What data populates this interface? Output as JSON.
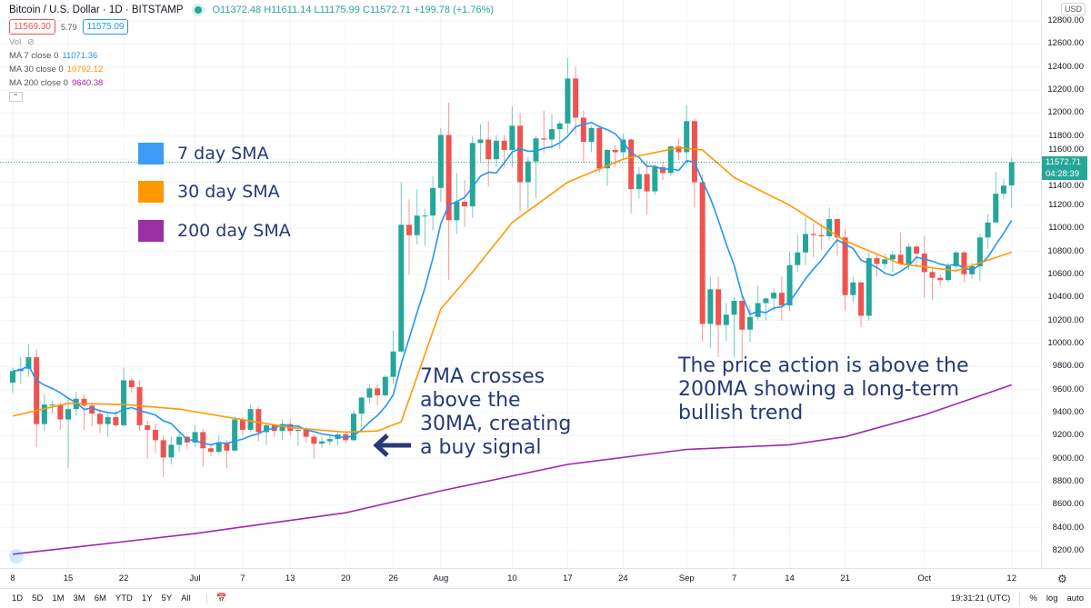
{
  "header": {
    "title": "Bitcoin / U.S. Dollar · 1D · BITSTAMP",
    "open": "O11372.48",
    "high": "H11611.14",
    "low": "L11175.99",
    "close": "C11572.71",
    "change": "+199.78 (+1.76%)",
    "bid": "11569.30",
    "spread": "5.79",
    "ask": "11575.09",
    "vol_label": "Vol"
  },
  "indicators": [
    {
      "label": "MA 7 close 0",
      "value": "11071.36",
      "color": "#2196f3"
    },
    {
      "label": "MA 30 close 0",
      "value": "10792.12",
      "color": "#ff9800"
    },
    {
      "label": "MA 200 close 0",
      "value": "9640.38",
      "color": "#9c27b0"
    }
  ],
  "legend": [
    {
      "label": "7 day SMA",
      "color": "#3d9cf5"
    },
    {
      "label": "30 day SMA",
      "color": "#ff9800"
    },
    {
      "label": "200 day SMA",
      "color": "#9b2fa4"
    }
  ],
  "annotations": {
    "crossover": [
      "7MA crosses",
      "above the",
      "30MA, creating",
      "a buy signal"
    ],
    "trend": [
      "The price action is above the",
      "200MA showing a long-term",
      "bullish trend"
    ]
  },
  "price_axis": {
    "currency": "USD",
    "ticks": [
      12800,
      12600,
      12400,
      12200,
      12000,
      11800,
      11600,
      11400,
      11200,
      11000,
      10800,
      10600,
      10400,
      10200,
      10000,
      9800,
      9600,
      9400,
      9200,
      9000,
      8800,
      8600,
      8400,
      8200
    ],
    "last_price": "11572.71",
    "countdown": "04:28:39"
  },
  "time_axis": {
    "ticks": [
      {
        "label": "8",
        "date": "Jun 8"
      },
      {
        "label": "15",
        "date": "Jun 15"
      },
      {
        "label": "22",
        "date": "Jun 22"
      },
      {
        "label": "Jul",
        "date": "Jul 1"
      },
      {
        "label": "7",
        "date": "Jul 7"
      },
      {
        "label": "13",
        "date": "Jul 13"
      },
      {
        "label": "20",
        "date": "Jul 20"
      },
      {
        "label": "26",
        "date": "Jul 26"
      },
      {
        "label": "Aug",
        "date": "Aug 1"
      },
      {
        "label": "10",
        "date": "Aug 10"
      },
      {
        "label": "17",
        "date": "Aug 17"
      },
      {
        "label": "24",
        "date": "Aug 24"
      },
      {
        "label": "Sep",
        "date": "Sep 1"
      },
      {
        "label": "7",
        "date": "Sep 7"
      },
      {
        "label": "14",
        "date": "Sep 14"
      },
      {
        "label": "21",
        "date": "Sep 21"
      },
      {
        "label": "Oct",
        "date": "Oct 1"
      },
      {
        "label": "12",
        "date": "Oct 12"
      }
    ]
  },
  "toolbar": {
    "ranges": [
      "1D",
      "5D",
      "1M",
      "3M",
      "6M",
      "YTD",
      "1Y",
      "5Y",
      "All"
    ],
    "time": "19:31:21 (UTC)",
    "percent": "%",
    "log": "log",
    "auto": "auto"
  },
  "colors": {
    "up": "#26a69a",
    "down": "#ef5350",
    "ma7": "#2196f3",
    "ma30": "#ff9800",
    "ma200": "#9c27b0",
    "annotation": "#263a75"
  },
  "chart_data": {
    "type": "candlestick",
    "title": "Bitcoin / U.S. Dollar · 1D · BITSTAMP",
    "ylim": [
      8100,
      12900
    ],
    "grid": true,
    "candles": [
      [
        "Jun 8",
        9660,
        9790,
        9570,
        9760
      ],
      [
        "Jun 9",
        9760,
        9880,
        9650,
        9780
      ],
      [
        "Jun 10",
        9780,
        9990,
        9710,
        9880
      ],
      [
        "Jun 11",
        9880,
        9950,
        9100,
        9300
      ],
      [
        "Jun 12",
        9300,
        9560,
        9240,
        9470
      ],
      [
        "Jun 13",
        9470,
        9500,
        9390,
        9470
      ],
      [
        "Jun 14",
        9470,
        9490,
        9250,
        9340
      ],
      [
        "Jun 15",
        9340,
        9530,
        8920,
        9430
      ],
      [
        "Jun 16",
        9430,
        9580,
        9370,
        9520
      ],
      [
        "Jun 17",
        9520,
        9560,
        9250,
        9460
      ],
      [
        "Jun 18",
        9460,
        9490,
        9280,
        9390
      ],
      [
        "Jun 19",
        9390,
        9430,
        9220,
        9300
      ],
      [
        "Jun 20",
        9300,
        9400,
        9190,
        9360
      ],
      [
        "Jun 21",
        9360,
        9420,
        9270,
        9290
      ],
      [
        "Jun 22",
        9290,
        9790,
        9280,
        9680
      ],
      [
        "Jun 23",
        9680,
        9700,
        9570,
        9620
      ],
      [
        "Jun 24",
        9620,
        9680,
        9240,
        9290
      ],
      [
        "Jun 25",
        9290,
        9330,
        9000,
        9250
      ],
      [
        "Jun 26",
        9250,
        9300,
        9050,
        9160
      ],
      [
        "Jun 27",
        9160,
        9200,
        8840,
        9010
      ],
      [
        "Jun 28",
        9010,
        9190,
        8950,
        9120
      ],
      [
        "Jun 29",
        9120,
        9230,
        9060,
        9190
      ],
      [
        "Jun 30",
        9190,
        9200,
        9080,
        9140
      ],
      [
        "Jul 1",
        9140,
        9290,
        9100,
        9230
      ],
      [
        "Jul 2",
        9230,
        9260,
        8930,
        9090
      ],
      [
        "Jul 3",
        9090,
        9130,
        9020,
        9060
      ],
      [
        "Jul 4",
        9060,
        9200,
        9040,
        9140
      ],
      [
        "Jul 5",
        9140,
        9160,
        8920,
        9070
      ],
      [
        "Jul 6",
        9070,
        9370,
        9060,
        9340
      ],
      [
        "Jul 7",
        9340,
        9360,
        9200,
        9250
      ],
      [
        "Jul 8",
        9250,
        9470,
        9230,
        9430
      ],
      [
        "Jul 9",
        9430,
        9450,
        9150,
        9230
      ],
      [
        "Jul 10",
        9230,
        9310,
        9120,
        9290
      ],
      [
        "Jul 11",
        9290,
        9300,
        9190,
        9240
      ],
      [
        "Jul 12",
        9240,
        9340,
        9160,
        9300
      ],
      [
        "Jul 13",
        9300,
        9340,
        9200,
        9240
      ],
      [
        "Jul 14",
        9240,
        9280,
        9110,
        9250
      ],
      [
        "Jul 15",
        9250,
        9270,
        9140,
        9190
      ],
      [
        "Jul 16",
        9190,
        9210,
        9000,
        9130
      ],
      [
        "Jul 17",
        9130,
        9190,
        9090,
        9150
      ],
      [
        "Jul 18",
        9150,
        9200,
        9120,
        9170
      ],
      [
        "Jul 19",
        9170,
        9230,
        9110,
        9210
      ],
      [
        "Jul 20",
        9210,
        9220,
        9130,
        9160
      ],
      [
        "Jul 21",
        9160,
        9420,
        9150,
        9390
      ],
      [
        "Jul 22",
        9390,
        9540,
        9280,
        9530
      ],
      [
        "Jul 23",
        9530,
        9640,
        9480,
        9610
      ],
      [
        "Jul 24",
        9610,
        9650,
        9460,
        9550
      ],
      [
        "Jul 25",
        9550,
        9730,
        9540,
        9710
      ],
      [
        "Jul 26",
        9710,
        10110,
        9650,
        9930
      ],
      [
        "Jul 27",
        9930,
        11400,
        9920,
        11030
      ],
      [
        "Jul 28",
        11030,
        11250,
        10600,
        10940
      ],
      [
        "Jul 29",
        10940,
        11340,
        10860,
        11110
      ],
      [
        "Jul 30",
        11110,
        11170,
        10850,
        11110
      ],
      [
        "Jul 31",
        11110,
        11450,
        10980,
        11350
      ],
      [
        "Aug 1",
        11350,
        11870,
        11230,
        11810
      ],
      [
        "Aug 2",
        11810,
        12090,
        10550,
        11070
      ],
      [
        "Aug 3",
        11070,
        11480,
        10950,
        11230
      ],
      [
        "Aug 4",
        11230,
        11420,
        11010,
        11190
      ],
      [
        "Aug 5",
        11190,
        11800,
        11090,
        11740
      ],
      [
        "Aug 6",
        11740,
        11900,
        11580,
        11770
      ],
      [
        "Aug 7",
        11770,
        11930,
        11360,
        11600
      ],
      [
        "Aug 8",
        11600,
        11810,
        11530,
        11760
      ],
      [
        "Aug 9",
        11760,
        11810,
        11530,
        11680
      ],
      [
        "Aug 10",
        11680,
        12060,
        11530,
        11890
      ],
      [
        "Aug 11",
        11890,
        12000,
        11140,
        11400
      ],
      [
        "Aug 12",
        11400,
        11620,
        11150,
        11580
      ],
      [
        "Aug 13",
        11580,
        11800,
        11260,
        11780
      ],
      [
        "Aug 14",
        11780,
        12020,
        11650,
        11770
      ],
      [
        "Aug 15",
        11770,
        11990,
        11690,
        11860
      ],
      [
        "Aug 16",
        11860,
        11930,
        11690,
        11910
      ],
      [
        "Aug 17",
        11910,
        12480,
        11820,
        12300
      ],
      [
        "Aug 18",
        12300,
        12400,
        11810,
        11960
      ],
      [
        "Aug 19",
        11960,
        12020,
        11570,
        11750
      ],
      [
        "Aug 20",
        11750,
        11890,
        11660,
        11870
      ],
      [
        "Aug 21",
        11870,
        11890,
        11480,
        11520
      ],
      [
        "Aug 22",
        11520,
        11690,
        11370,
        11680
      ],
      [
        "Aug 23",
        11680,
        11720,
        11530,
        11660
      ],
      [
        "Aug 24",
        11660,
        11820,
        11590,
        11770
      ],
      [
        "Aug 25",
        11770,
        11780,
        11130,
        11340
      ],
      [
        "Aug 26",
        11340,
        11530,
        11260,
        11470
      ],
      [
        "Aug 27",
        11470,
        11590,
        11120,
        11320
      ],
      [
        "Aug 28",
        11320,
        11550,
        11290,
        11530
      ],
      [
        "Aug 29",
        11530,
        11580,
        11420,
        11480
      ],
      [
        "Aug 30",
        11480,
        11720,
        11460,
        11710
      ],
      [
        "Aug 31",
        11710,
        11780,
        11590,
        11660
      ],
      [
        "Sep 1",
        11660,
        12070,
        11540,
        11930
      ],
      [
        "Sep 2",
        11930,
        11950,
        11180,
        11400
      ],
      [
        "Sep 3",
        11400,
        11470,
        10020,
        10170
      ],
      [
        "Sep 4",
        10170,
        10580,
        9960,
        10470
      ],
      [
        "Sep 5",
        10470,
        10580,
        9880,
        10160
      ],
      [
        "Sep 6",
        10160,
        10350,
        10020,
        10250
      ],
      [
        "Sep 7",
        10250,
        10400,
        9880,
        10370
      ],
      [
        "Sep 8",
        10370,
        10420,
        9840,
        10120
      ],
      [
        "Sep 9",
        10120,
        10330,
        10010,
        10230
      ],
      [
        "Sep 10",
        10230,
        10500,
        10200,
        10350
      ],
      [
        "Sep 11",
        10350,
        10400,
        10200,
        10390
      ],
      [
        "Sep 12",
        10390,
        10480,
        10280,
        10440
      ],
      [
        "Sep 13",
        10440,
        10580,
        10200,
        10330
      ],
      [
        "Sep 14",
        10330,
        10800,
        10280,
        10680
      ],
      [
        "Sep 15",
        10680,
        10940,
        10620,
        10790
      ],
      [
        "Sep 16",
        10790,
        11100,
        10680,
        10950
      ],
      [
        "Sep 17",
        10950,
        11040,
        10750,
        10940
      ],
      [
        "Sep 18",
        10940,
        11040,
        10810,
        10930
      ],
      [
        "Sep 19",
        10930,
        11180,
        10890,
        11080
      ],
      [
        "Sep 20",
        11080,
        11080,
        10760,
        10920
      ],
      [
        "Sep 21",
        10920,
        10990,
        10280,
        10420
      ],
      [
        "Sep 22",
        10420,
        10580,
        10360,
        10530
      ],
      [
        "Sep 23",
        10530,
        10540,
        10140,
        10240
      ],
      [
        "Sep 24",
        10240,
        10790,
        10200,
        10740
      ],
      [
        "Sep 25",
        10740,
        10770,
        10580,
        10690
      ],
      [
        "Sep 26",
        10690,
        10780,
        10650,
        10730
      ],
      [
        "Sep 27",
        10730,
        10800,
        10620,
        10770
      ],
      [
        "Sep 28",
        10770,
        10960,
        10680,
        10690
      ],
      [
        "Sep 29",
        10690,
        10870,
        10640,
        10840
      ],
      [
        "Sep 30",
        10840,
        10860,
        10660,
        10780
      ],
      [
        "Oct 1",
        10780,
        10930,
        10400,
        10620
      ],
      [
        "Oct 2",
        10620,
        10650,
        10380,
        10570
      ],
      [
        "Oct 3",
        10570,
        10600,
        10500,
        10550
      ],
      [
        "Oct 4",
        10550,
        10700,
        10530,
        10670
      ],
      [
        "Oct 5",
        10670,
        10800,
        10630,
        10790
      ],
      [
        "Oct 6",
        10790,
        10800,
        10530,
        10600
      ],
      [
        "Oct 7",
        10600,
        10700,
        10560,
        10670
      ],
      [
        "Oct 8",
        10670,
        10950,
        10540,
        10920
      ],
      [
        "Oct 9",
        10920,
        11120,
        10820,
        11050
      ],
      [
        "Oct 10",
        11050,
        11490,
        11050,
        11300
      ],
      [
        "Oct 11",
        11300,
        11430,
        11250,
        11370
      ],
      [
        "Oct 12",
        11372.48,
        11611.14,
        11175.99,
        11572.71
      ]
    ],
    "ma30": [
      [
        "Jun 8",
        9370
      ],
      [
        "Jun 15",
        9480
      ],
      [
        "Jun 22",
        9470
      ],
      [
        "Jun 29",
        9430
      ],
      [
        "Jul 6",
        9350
      ],
      [
        "Jul 13",
        9270
      ],
      [
        "Jul 20",
        9230
      ],
      [
        "Jul 24",
        9240
      ],
      [
        "Jul 27",
        9320
      ],
      [
        "Aug 1",
        10300
      ],
      [
        "Aug 5",
        10620
      ],
      [
        "Aug 10",
        11050
      ],
      [
        "Aug 17",
        11400
      ],
      [
        "Aug 24",
        11600
      ],
      [
        "Aug 31",
        11700
      ],
      [
        "Sep 3",
        11680
      ],
      [
        "Sep 7",
        11440
      ],
      [
        "Sep 14",
        11200
      ],
      [
        "Sep 21",
        10890
      ],
      [
        "Sep 28",
        10690
      ],
      [
        "Oct 5",
        10630
      ],
      [
        "Oct 12",
        10792.12
      ]
    ],
    "ma200": [
      [
        "Jun 8",
        8170
      ],
      [
        "Jul 1",
        8350
      ],
      [
        "Jul 20",
        8530
      ],
      [
        "Aug 1",
        8720
      ],
      [
        "Aug 17",
        8950
      ],
      [
        "Sep 1",
        9080
      ],
      [
        "Sep 14",
        9120
      ],
      [
        "Sep 21",
        9190
      ],
      [
        "Oct 1",
        9380
      ],
      [
        "Oct 12",
        9640.38
      ]
    ]
  }
}
